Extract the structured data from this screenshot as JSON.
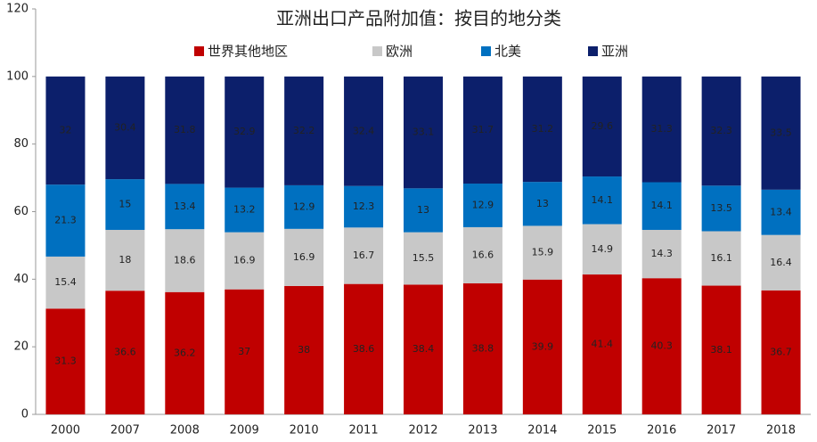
{
  "chart_data": {
    "type": "stacked_bar",
    "title": "亚洲出口产品附加值：按目的地分类",
    "categories": [
      "2000",
      "2007",
      "2008",
      "2009",
      "2010",
      "2011",
      "2012",
      "2013",
      "2014",
      "2015",
      "2016",
      "2017",
      "2018"
    ],
    "series": [
      {
        "name": "世界其他地区",
        "color": "#c00000",
        "values": [
          31.3,
          36.6,
          36.2,
          37,
          38,
          38.6,
          38.4,
          38.8,
          39.9,
          41.4,
          40.3,
          38.1,
          36.7
        ]
      },
      {
        "name": "欧洲",
        "color": "#c8c8c8",
        "values": [
          15.4,
          18,
          18.6,
          16.9,
          16.9,
          16.7,
          15.5,
          16.6,
          15.9,
          14.9,
          14.3,
          16.1,
          16.4
        ]
      },
      {
        "name": "北美",
        "color": "#0070c0",
        "values": [
          21.3,
          15,
          13.4,
          13.2,
          12.9,
          12.3,
          13,
          12.9,
          13,
          14.1,
          14.1,
          13.5,
          13.4
        ]
      },
      {
        "name": "亚洲",
        "color": "#0c1f6b",
        "values": [
          32,
          30.4,
          31.8,
          32.9,
          32.2,
          32.4,
          33.1,
          31.7,
          31.2,
          29.6,
          31.3,
          32.3,
          33.5
        ]
      }
    ],
    "ylim": [
      0,
      120
    ],
    "yticks": [
      0,
      20,
      40,
      60,
      80,
      100,
      120
    ],
    "grid": false,
    "legend": "top"
  }
}
